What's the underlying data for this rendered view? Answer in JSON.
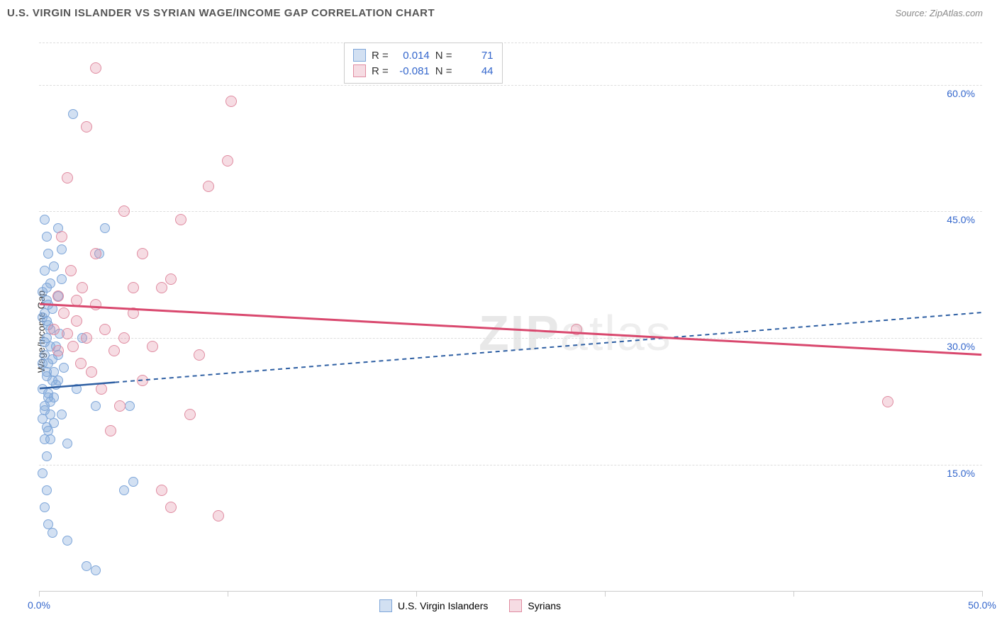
{
  "title": "U.S. VIRGIN ISLANDER VS SYRIAN WAGE/INCOME GAP CORRELATION CHART",
  "source": "Source: ZipAtlas.com",
  "y_axis_label": "Wage/Income Gap",
  "watermark_bold": "ZIP",
  "watermark_light": "atlas",
  "chart": {
    "type": "scatter",
    "xlim": [
      0,
      50
    ],
    "ylim": [
      0,
      65
    ],
    "x_ticks": [
      0,
      10,
      20,
      30,
      40,
      50
    ],
    "x_tick_labels": [
      "0.0%",
      "",
      "",
      "",
      "",
      "50.0%"
    ],
    "y_ticks": [
      15,
      30,
      45,
      60
    ],
    "y_tick_labels": [
      "15.0%",
      "30.0%",
      "45.0%",
      "60.0%"
    ],
    "background_color": "#ffffff",
    "grid_color": "#dddddd",
    "axis_color": "#cccccc",
    "tick_label_color": "#3366cc",
    "tick_label_fontsize": 14
  },
  "series": [
    {
      "name": "U.S. Virgin Islanders",
      "marker_color": "#7ea6d9",
      "marker_fill": "rgba(126,166,217,0.35)",
      "marker_size": 14,
      "line_color": "#2e5fa3",
      "line_width": 2.5,
      "line_dash": "6,5",
      "solid_extent": 4,
      "regression": {
        "x1": 0,
        "y1": 24,
        "x2": 50,
        "y2": 33
      },
      "R_label": "R =",
      "R_value": "0.014",
      "N_label": "N =",
      "N_value": "71",
      "points": [
        [
          0.2,
          24
        ],
        [
          0.3,
          22
        ],
        [
          0.4,
          26
        ],
        [
          0.5,
          23
        ],
        [
          0.6,
          21
        ],
        [
          0.7,
          25
        ],
        [
          0.8,
          20
        ],
        [
          0.3,
          28
        ],
        [
          0.4,
          30
        ],
        [
          0.5,
          27
        ],
        [
          0.6,
          29
        ],
        [
          0.4,
          32
        ],
        [
          0.5,
          34
        ],
        [
          0.3,
          33
        ],
        [
          0.2,
          35.5
        ],
        [
          0.4,
          36
        ],
        [
          0.3,
          38
        ],
        [
          0.5,
          40
        ],
        [
          0.4,
          42
        ],
        [
          1.0,
          43
        ],
        [
          1.2,
          40.5
        ],
        [
          0.3,
          18
        ],
        [
          0.4,
          16
        ],
        [
          0.5,
          19
        ],
        [
          0.2,
          14
        ],
        [
          1.5,
          17.5
        ],
        [
          2.0,
          24
        ],
        [
          2.3,
          30
        ],
        [
          3.0,
          22
        ],
        [
          3.2,
          40
        ],
        [
          3.5,
          43
        ],
        [
          1.8,
          56.5
        ],
        [
          0.3,
          10
        ],
        [
          0.5,
          8
        ],
        [
          0.7,
          7
        ],
        [
          0.4,
          12
        ],
        [
          2.5,
          3
        ],
        [
          3.0,
          2.5
        ],
        [
          1.5,
          6
        ],
        [
          4.5,
          12
        ],
        [
          5.0,
          13
        ],
        [
          4.8,
          22
        ],
        [
          0.3,
          44
        ],
        [
          0.6,
          31
        ],
        [
          0.8,
          26
        ],
        [
          1.0,
          28
        ],
        [
          1.2,
          21
        ],
        [
          0.2,
          27
        ],
        [
          0.9,
          24.5
        ],
        [
          0.4,
          25.5
        ],
        [
          0.6,
          22.5
        ],
        [
          0.3,
          29.5
        ],
        [
          0.5,
          31.5
        ],
        [
          0.7,
          33.5
        ],
        [
          0.2,
          20.5
        ],
        [
          0.4,
          19.5
        ],
        [
          0.6,
          18
        ],
        [
          0.8,
          23
        ],
        [
          1.0,
          25
        ],
        [
          1.3,
          26.5
        ],
        [
          0.3,
          21.5
        ],
        [
          0.5,
          23.5
        ],
        [
          0.7,
          27.5
        ],
        [
          0.9,
          29
        ],
        [
          1.1,
          30.5
        ],
        [
          0.2,
          32.5
        ],
        [
          0.4,
          34.5
        ],
        [
          0.6,
          36.5
        ],
        [
          0.8,
          38.5
        ],
        [
          1.0,
          35
        ],
        [
          1.2,
          37
        ]
      ]
    },
    {
      "name": "Syrians",
      "marker_color": "#e08ca1",
      "marker_fill": "rgba(224,140,161,0.3)",
      "marker_size": 16,
      "line_color": "#d9486e",
      "line_width": 3,
      "line_dash": "none",
      "solid_extent": 50,
      "regression": {
        "x1": 0,
        "y1": 34,
        "x2": 50,
        "y2": 28
      },
      "R_label": "R =",
      "R_value": "-0.081",
      "N_label": "N =",
      "N_value": "44",
      "points": [
        [
          2.0,
          32
        ],
        [
          2.5,
          30
        ],
        [
          3.0,
          34
        ],
        [
          3.5,
          31
        ],
        [
          4.0,
          28.5
        ],
        [
          4.5,
          30
        ],
        [
          5.0,
          33
        ],
        [
          5.5,
          25
        ],
        [
          6.0,
          29
        ],
        [
          6.5,
          36
        ],
        [
          7.0,
          37
        ],
        [
          7.5,
          44
        ],
        [
          8.0,
          21
        ],
        [
          8.5,
          28
        ],
        [
          9.0,
          48
        ],
        [
          9.5,
          9
        ],
        [
          10.0,
          51
        ],
        [
          10.2,
          58
        ],
        [
          3.0,
          62
        ],
        [
          2.5,
          55
        ],
        [
          4.5,
          45
        ],
        [
          5.5,
          40
        ],
        [
          1.5,
          49
        ],
        [
          1.0,
          35
        ],
        [
          1.3,
          33
        ],
        [
          1.8,
          29
        ],
        [
          2.2,
          27
        ],
        [
          2.8,
          26
        ],
        [
          3.3,
          24
        ],
        [
          3.8,
          19
        ],
        [
          4.3,
          22
        ],
        [
          6.5,
          12
        ],
        [
          7.0,
          10
        ],
        [
          28.5,
          31
        ],
        [
          45.0,
          22.5
        ],
        [
          1.2,
          42
        ],
        [
          1.7,
          38
        ],
        [
          2.3,
          36
        ],
        [
          0.8,
          31
        ],
        [
          1.0,
          28.5
        ],
        [
          1.5,
          30.5
        ],
        [
          2.0,
          34.5
        ],
        [
          3.0,
          40
        ],
        [
          5.0,
          36
        ]
      ]
    }
  ]
}
